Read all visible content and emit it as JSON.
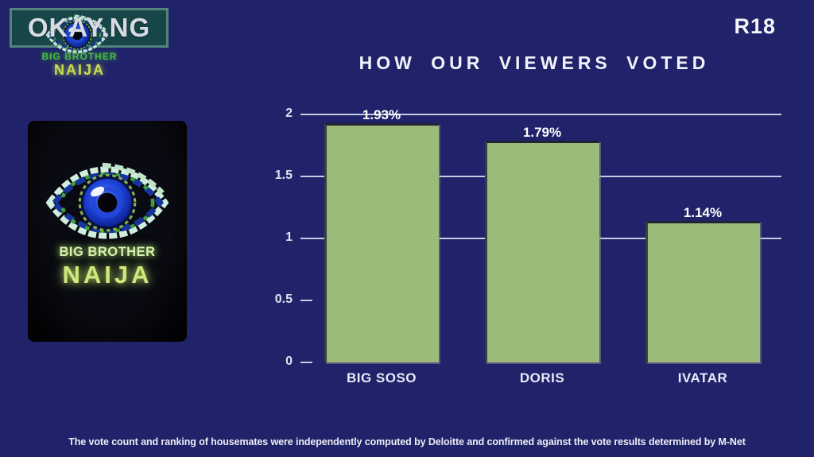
{
  "watermark": {
    "badge_text": "OKAY.NG",
    "brand_line1": "BIG BROTHER",
    "brand_line2": "NAIJA"
  },
  "rating_badge": "R18",
  "logo_card": {
    "eye_icon": "big-brother-eye-icon",
    "line1": "BIG BROTHER",
    "line2": "NAIJA"
  },
  "chart_data": {
    "type": "bar",
    "title": "HOW OUR VIEWERS VOTED",
    "categories": [
      "BIG SOSO",
      "DORIS",
      "IVATAR"
    ],
    "values": [
      1.93,
      1.79,
      1.14
    ],
    "value_labels": [
      "1.93%",
      "1.79%",
      "1.14%"
    ],
    "ylim": [
      0,
      2
    ],
    "yticks": [
      0,
      0.5,
      1,
      1.5,
      2
    ],
    "ytick_labels": [
      "0",
      "0.5",
      "1",
      "1.5",
      "2"
    ],
    "gridline_values": [
      1,
      1.5,
      2
    ],
    "grid": true,
    "legend": false,
    "xlabel": "",
    "ylabel": "",
    "bar_color": "#9cbb7b",
    "grid_color": "#c7cae3",
    "background_color": "#20226a"
  },
  "colors": {
    "background": "#20226a",
    "bar_green": "#9cbb7b",
    "gridline": "#c7cae3",
    "brand_green": "#49b840",
    "brand_yellow": "#c8de4e",
    "logo_glow_green": "#d9f3af",
    "text_white": "#f2f3fa"
  },
  "footer": {
    "disclaimer": "The vote count and ranking of housemates were independently computed by Deloitte and confirmed against the vote results determined by M-Net"
  }
}
